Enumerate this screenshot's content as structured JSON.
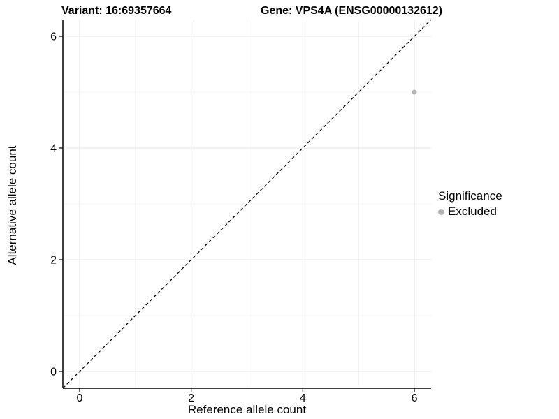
{
  "chart_data": {
    "type": "scatter",
    "titles": {
      "left": "Variant: 16:69357664",
      "right": "Gene: VPS4A (ENSG00000132612)"
    },
    "xlabel": "Reference allele count",
    "ylabel": "Alternative allele count",
    "xlim": [
      -0.3,
      6.3
    ],
    "ylim": [
      -0.3,
      6.3
    ],
    "x_ticks": [
      0,
      2,
      4,
      6
    ],
    "y_ticks": [
      0,
      2,
      4,
      6
    ],
    "x_minor_ticks": [
      1,
      3,
      5
    ],
    "y_minor_ticks": [
      1,
      3,
      5
    ],
    "grid": true,
    "points": [
      {
        "x": 6,
        "y": 5,
        "series": "Excluded"
      }
    ],
    "reference_line": {
      "type": "identity",
      "style": "dashed",
      "color": "#000000"
    },
    "legend": {
      "title": "Significance",
      "position": "right",
      "entries": [
        {
          "label": "Excluded",
          "color": "#b5b5b5"
        }
      ]
    }
  },
  "colors": {
    "background": "#ffffff",
    "grid_major": "#e9e9e9",
    "grid_minor": "#f3f3f3",
    "axis": "#000000",
    "text": "#000000",
    "point": "#b5b5b5"
  }
}
